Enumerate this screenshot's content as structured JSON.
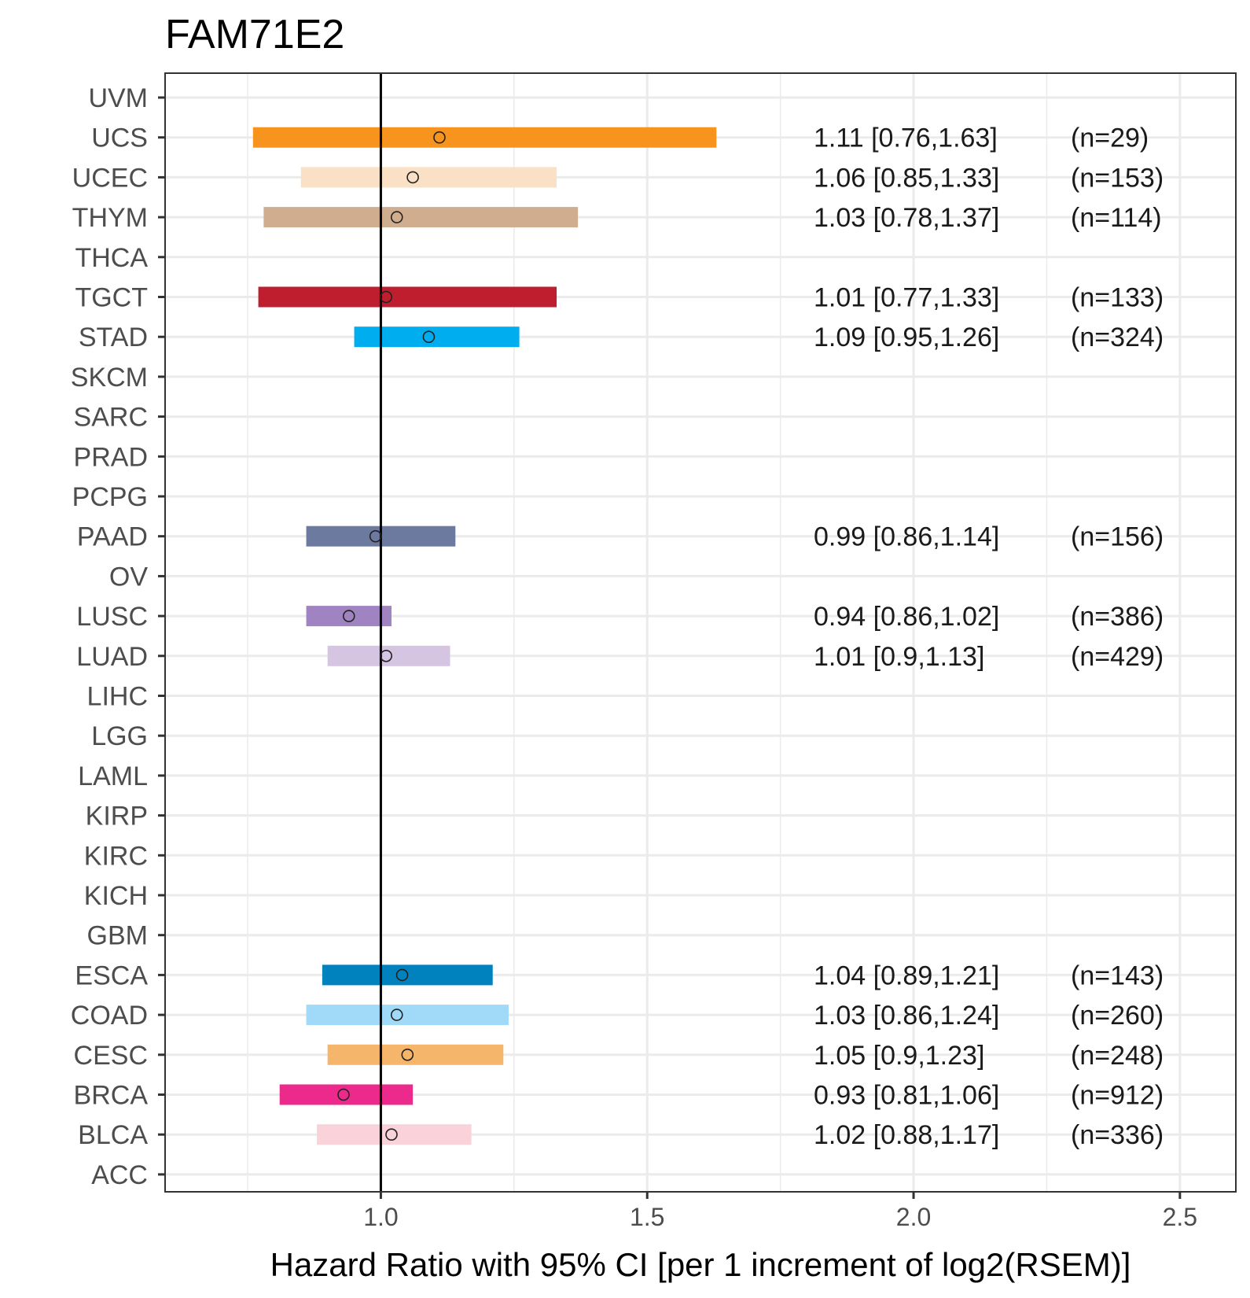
{
  "chart_data": {
    "type": "forest",
    "title": "FAM71E2",
    "xlabel": "Hazard Ratio with 95% CI [per 1 increment of log2(RSEM)]",
    "ylabel": "",
    "xlim": [
      0.595,
      2.605
    ],
    "x_ticks": [
      1.0,
      1.5,
      2.0,
      2.5
    ],
    "x_tick_labels": [
      "1.0",
      "1.5",
      "2.0",
      "2.5"
    ],
    "reference_line": 1.0,
    "grid": true,
    "categories": [
      "UVM",
      "UCS",
      "UCEC",
      "THYM",
      "THCA",
      "TGCT",
      "STAD",
      "SKCM",
      "SARC",
      "PRAD",
      "PCPG",
      "PAAD",
      "OV",
      "LUSC",
      "LUAD",
      "LIHC",
      "LGG",
      "LAML",
      "KIRP",
      "KIRC",
      "KICH",
      "GBM",
      "ESCA",
      "COAD",
      "CESC",
      "BRCA",
      "BLCA",
      "ACC"
    ],
    "rows": [
      {
        "cancer": "UVM"
      },
      {
        "cancer": "UCS",
        "hr": 1.11,
        "low": 0.76,
        "high": 1.63,
        "label": "1.11 [0.76,1.63]",
        "n": "(n=29)",
        "color": "#F7941D"
      },
      {
        "cancer": "UCEC",
        "hr": 1.06,
        "low": 0.85,
        "high": 1.33,
        "label": "1.06 [0.85,1.33]",
        "n": "(n=153)",
        "color": "#FAE0C4"
      },
      {
        "cancer": "THYM",
        "hr": 1.03,
        "low": 0.78,
        "high": 1.37,
        "label": "1.03 [0.78,1.37]",
        "n": "(n=114)",
        "color": "#D0AD8E"
      },
      {
        "cancer": "THCA"
      },
      {
        "cancer": "TGCT",
        "hr": 1.01,
        "low": 0.77,
        "high": 1.33,
        "label": "1.01 [0.77,1.33]",
        "n": "(n=133)",
        "color": "#BE1E2D"
      },
      {
        "cancer": "STAD",
        "hr": 1.09,
        "low": 0.95,
        "high": 1.26,
        "label": "1.09 [0.95,1.26]",
        "n": "(n=324)",
        "color": "#00AEEF"
      },
      {
        "cancer": "SKCM"
      },
      {
        "cancer": "SARC"
      },
      {
        "cancer": "PRAD"
      },
      {
        "cancer": "PCPG"
      },
      {
        "cancer": "PAAD",
        "hr": 0.99,
        "low": 0.86,
        "high": 1.14,
        "label": "0.99 [0.86,1.14]",
        "n": "(n=156)",
        "color": "#6D7AA0"
      },
      {
        "cancer": "OV"
      },
      {
        "cancer": "LUSC",
        "hr": 0.94,
        "low": 0.86,
        "high": 1.02,
        "label": "0.94 [0.86,1.02]",
        "n": "(n=386)",
        "color": "#A084C1"
      },
      {
        "cancer": "LUAD",
        "hr": 1.01,
        "low": 0.9,
        "high": 1.13,
        "label": "1.01 [0.9,1.13]",
        "n": "(n=429)",
        "color": "#D5C5E2"
      },
      {
        "cancer": "LIHC"
      },
      {
        "cancer": "LGG"
      },
      {
        "cancer": "LAML"
      },
      {
        "cancer": "KIRP"
      },
      {
        "cancer": "KIRC"
      },
      {
        "cancer": "KICH"
      },
      {
        "cancer": "GBM"
      },
      {
        "cancer": "ESCA",
        "hr": 1.04,
        "low": 0.89,
        "high": 1.21,
        "label": "1.04 [0.89,1.21]",
        "n": "(n=143)",
        "color": "#0082BE"
      },
      {
        "cancer": "COAD",
        "hr": 1.03,
        "low": 0.86,
        "high": 1.24,
        "label": "1.03 [0.86,1.24]",
        "n": "(n=260)",
        "color": "#A0DAF8"
      },
      {
        "cancer": "CESC",
        "hr": 1.05,
        "low": 0.9,
        "high": 1.23,
        "label": "1.05 [0.9,1.23]",
        "n": "(n=248)",
        "color": "#F5B66C"
      },
      {
        "cancer": "BRCA",
        "hr": 0.93,
        "low": 0.81,
        "high": 1.06,
        "label": "0.93 [0.81,1.06]",
        "n": "(n=912)",
        "color": "#EC2A8B"
      },
      {
        "cancer": "BLCA",
        "hr": 1.02,
        "low": 0.88,
        "high": 1.17,
        "label": "1.02 [0.88,1.17]",
        "n": "(n=336)",
        "color": "#F9D2DA"
      },
      {
        "cancer": "ACC"
      }
    ]
  }
}
